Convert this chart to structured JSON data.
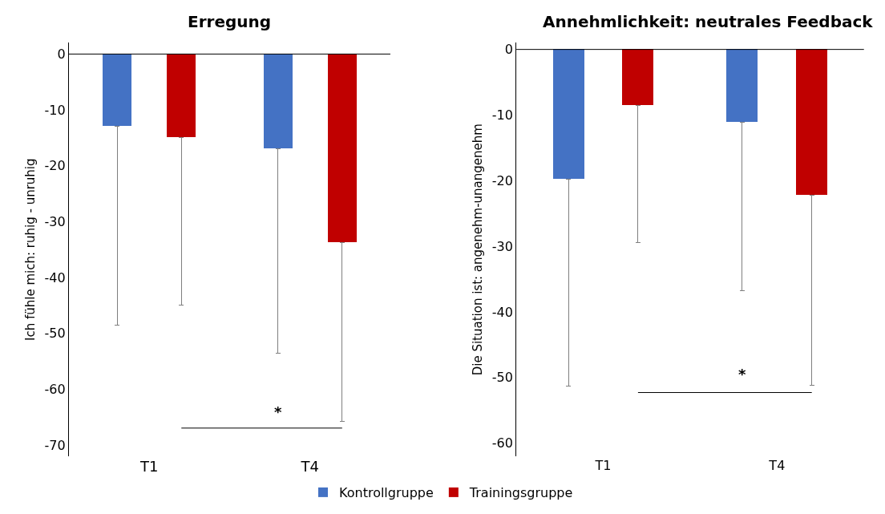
{
  "chart_data": [
    {
      "type": "bar",
      "title": "Erregung",
      "ylabel": "Ich fühle mich: ruhig - unruhig",
      "categories": [
        "T1",
        "T4"
      ],
      "series": [
        {
          "name": "Kontrollgruppe",
          "color": "#4472c4",
          "values": [
            -13,
            -17
          ],
          "errors": [
            [
              -48.5,
              -13
            ],
            [
              -53.5,
              -17
            ]
          ]
        },
        {
          "name": "Trainingsgruppe",
          "color": "#c00000",
          "values": [
            -15,
            -33.7
          ],
          "errors": [
            [
              -45,
              -15
            ],
            [
              -65.7,
              -33.7
            ]
          ]
        }
      ],
      "ylim": [
        -72,
        2
      ],
      "yticks": [
        0,
        -10,
        -20,
        -30,
        -40,
        -50,
        -60,
        -70
      ],
      "legend": "bottom",
      "ref_lines": [
        {
          "axis": "y",
          "value": 0,
          "color": "#000000"
        }
      ],
      "annotations": [
        "*"
      ]
    },
    {
      "type": "bar",
      "title": "Annehmlichkeit: neutrales Feedback",
      "ylabel": "Die Situation ist: angenehm-unangenehm",
      "categories": [
        "T1",
        "T4"
      ],
      "series": [
        {
          "color": "#4472c4",
          "values": [
            -19.8,
            -11.1
          ],
          "errors": [
            [
              -51.3,
              -19.8
            ],
            [
              -36.8,
              -11.1
            ]
          ]
        },
        {
          "color": "#c00000",
          "values": [
            -8.5,
            -22.2
          ],
          "errors": [
            [
              -29.4,
              -8.5
            ],
            [
              -51.2,
              -22.2
            ]
          ]
        }
      ],
      "ylim": [
        -62,
        1
      ],
      "yticks": [
        0,
        -10,
        -20,
        -30,
        -40,
        -50,
        -60
      ],
      "ref_lines": [
        {
          "axis": "y",
          "value": 0,
          "color": "#000000"
        }
      ],
      "annotations": [
        "*"
      ]
    }
  ]
}
